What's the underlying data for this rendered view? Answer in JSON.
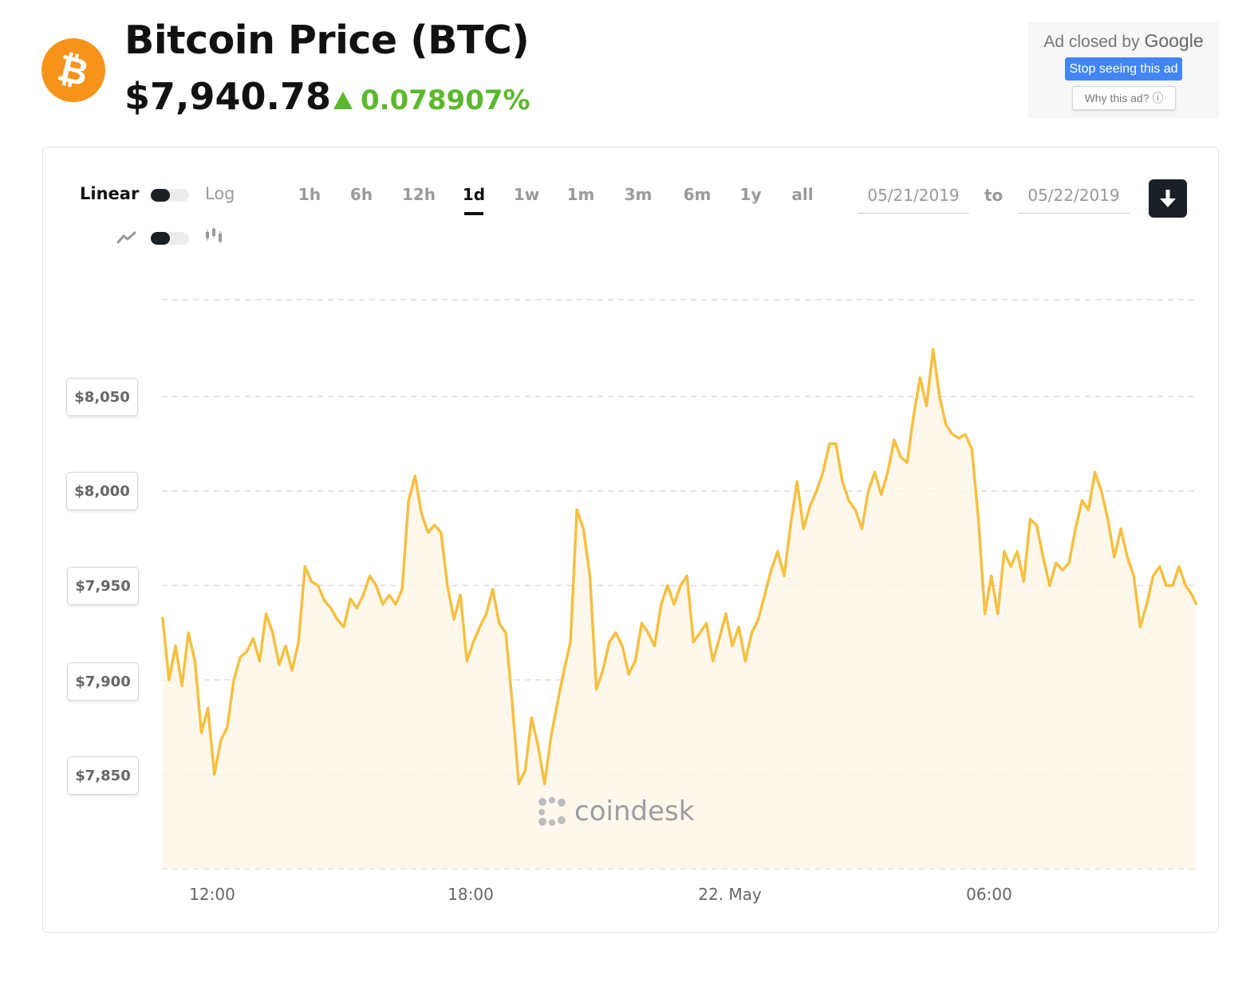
{
  "header": {
    "logo_icon": "bitcoin-icon",
    "logo_glyph": "₿",
    "title": "Bitcoin Price (BTC)",
    "price": "$7,940.78",
    "change": "0.078907%",
    "change_direction_icon": "triangle-up-icon",
    "change_color": "#5cb82e",
    "brand_color": "#f7931a"
  },
  "ad": {
    "title_prefix": "Ad closed by",
    "title_brand": "Google",
    "stop_label": "Stop seeing this ad",
    "why_label": "Why this ad? ⓘ",
    "stop_color": "#4285f4"
  },
  "controls": {
    "scale_linear": "Linear",
    "scale_log": "Log",
    "line_icon": "line-chart-icon",
    "candle_icon": "candlestick-icon",
    "ranges": [
      "1h",
      "6h",
      "12h",
      "1d",
      "1w",
      "1m",
      "3m",
      "6m",
      "1y",
      "all"
    ],
    "active_range": "1d",
    "date_from": "05/21/2019",
    "date_to_label": "to",
    "date_to": "05/22/2019",
    "download_icon": "download-arrow-icon"
  },
  "watermark": {
    "text": "coindesk",
    "icon": "coindesk-logo-icon"
  },
  "chart_data": {
    "type": "area",
    "line_color": "#f5c042",
    "y_ticks": [
      "$8,050",
      "$8,000",
      "$7,950",
      "$7,900",
      "$7,850"
    ],
    "y_tick_values": [
      8050,
      8000,
      7950,
      7900,
      7850
    ],
    "ylim": [
      7800,
      8100
    ],
    "x_ticks": [
      "12:00",
      "18:00",
      "22. May",
      "06:00"
    ],
    "x_tick_hours": [
      12,
      18,
      24,
      30
    ],
    "xlim_hours": [
      10.85,
      34.8
    ],
    "grid": true,
    "legend": "none",
    "series": [
      {
        "x_hours": [
          10.85,
          11.0,
          11.15,
          11.3,
          11.45,
          11.6,
          11.75,
          11.9,
          12.05,
          12.2,
          12.35,
          12.5,
          12.65,
          12.8,
          12.95,
          13.1,
          13.25,
          13.4,
          13.55,
          13.7,
          13.85,
          14.0,
          14.15,
          14.3,
          14.45,
          14.6,
          14.75,
          14.9,
          15.05,
          15.2,
          15.35,
          15.5,
          15.65,
          15.8,
          15.95,
          16.1,
          16.25,
          16.4,
          16.55,
          16.7,
          16.85,
          17.0,
          17.15,
          17.3,
          17.45,
          17.6,
          17.75,
          17.9,
          18.05,
          18.2,
          18.35,
          18.5,
          18.65,
          18.8,
          18.95,
          19.1,
          19.25,
          19.4,
          19.55,
          19.7,
          19.85,
          20.0,
          20.15,
          20.3,
          20.45,
          20.6,
          20.75,
          20.9,
          21.05,
          21.2,
          21.35,
          21.5,
          21.65,
          21.8,
          21.95,
          22.1,
          22.25,
          22.4,
          22.55,
          22.7,
          22.85,
          23.0,
          23.15,
          23.3,
          23.45,
          23.6,
          23.75,
          23.9,
          24.05,
          24.2,
          24.35,
          24.5,
          24.65,
          24.8,
          24.95,
          25.1,
          25.25,
          25.4,
          25.55,
          25.7,
          25.85,
          26.0,
          26.15,
          26.3,
          26.45,
          26.6,
          26.75,
          26.9,
          27.05,
          27.2,
          27.35,
          27.5,
          27.65,
          27.8,
          27.95,
          28.1,
          28.25,
          28.4,
          28.55,
          28.7,
          28.85,
          29.0,
          29.15,
          29.3,
          29.45,
          29.6,
          29.75,
          29.9,
          30.05,
          30.2,
          30.35,
          30.5,
          30.65,
          30.8,
          30.95,
          31.1,
          31.25,
          31.4,
          31.55,
          31.7,
          31.85,
          32.0,
          32.15,
          32.3,
          32.45,
          32.6,
          32.75,
          32.9,
          33.05,
          33.2,
          33.35,
          33.5,
          33.65,
          33.8,
          33.95,
          34.1,
          34.25,
          34.4,
          34.55,
          34.7,
          34.8
        ],
        "values": [
          7933,
          7900,
          7918,
          7897,
          7925,
          7910,
          7872,
          7885,
          7850,
          7868,
          7875,
          7900,
          7912,
          7915,
          7922,
          7910,
          7935,
          7925,
          7908,
          7918,
          7905,
          7920,
          7960,
          7952,
          7950,
          7942,
          7938,
          7932,
          7928,
          7943,
          7938,
          7945,
          7955,
          7950,
          7940,
          7945,
          7940,
          7948,
          7995,
          8008,
          7988,
          7978,
          7982,
          7978,
          7950,
          7932,
          7945,
          7910,
          7920,
          7928,
          7935,
          7948,
          7930,
          7925,
          7888,
          7845,
          7852,
          7880,
          7865,
          7845,
          7870,
          7888,
          7905,
          7920,
          7990,
          7980,
          7955,
          7895,
          7905,
          7920,
          7925,
          7918,
          7903,
          7910,
          7930,
          7925,
          7918,
          7940,
          7950,
          7940,
          7950,
          7955,
          7920,
          7925,
          7930,
          7910,
          7922,
          7935,
          7918,
          7928,
          7910,
          7925,
          7932,
          7945,
          7958,
          7968,
          7955,
          7982,
          8005,
          7980,
          7992,
          8000,
          8010,
          8025,
          8025,
          8005,
          7995,
          7990,
          7980,
          8000,
          8010,
          7998,
          8010,
          8027,
          8018,
          8015,
          8040,
          8060,
          8045,
          8075,
          8050,
          8035,
          8030,
          8028,
          8030,
          8022,
          7985,
          7935,
          7955,
          7935,
          7968,
          7960,
          7968,
          7952,
          7985,
          7982,
          7965,
          7950,
          7962,
          7958,
          7962,
          7980,
          7995,
          7990,
          8010,
          8000,
          7985,
          7965,
          7980,
          7965,
          7955,
          7928,
          7940,
          7955,
          7960,
          7950,
          7950,
          7960,
          7950,
          7945,
          7940
        ]
      }
    ]
  }
}
